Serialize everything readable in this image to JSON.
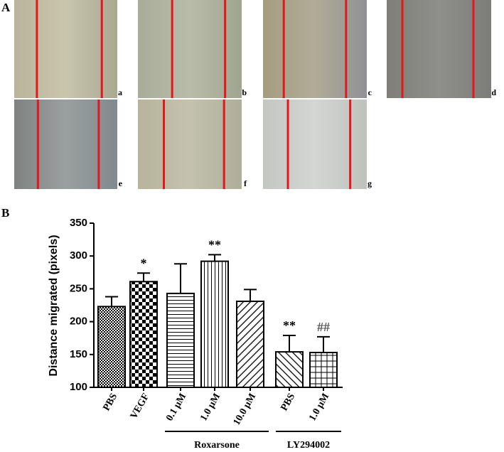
{
  "panel_labels": [
    "A",
    "B"
  ],
  "image_labels": [
    "a",
    "b",
    "c",
    "d",
    "e",
    "f",
    "g"
  ],
  "chart_data": {
    "type": "bar",
    "y_label": "Distance migrated (pixels)",
    "categories": [
      "PBS",
      "VEGF",
      "0.1 μM",
      "1.0 μM",
      "10.0 μM",
      "PBS",
      "1.0 μM"
    ],
    "values": [
      223,
      261,
      243,
      292,
      231,
      154,
      153
    ],
    "errors": [
      15,
      13,
      45,
      10,
      18,
      25,
      24
    ],
    "annotations": [
      null,
      "*",
      null,
      "**",
      null,
      "**",
      "##"
    ],
    "patterns": [
      "fine-check",
      "check",
      "horizontal",
      "vertical",
      "diagonal-up",
      "diagonal-down",
      "grid"
    ],
    "groups": [
      "Roxarsone",
      "LY294002"
    ],
    "ylim": [
      100,
      350
    ],
    "yticks": [
      100,
      150,
      200,
      250,
      300,
      350
    ]
  }
}
